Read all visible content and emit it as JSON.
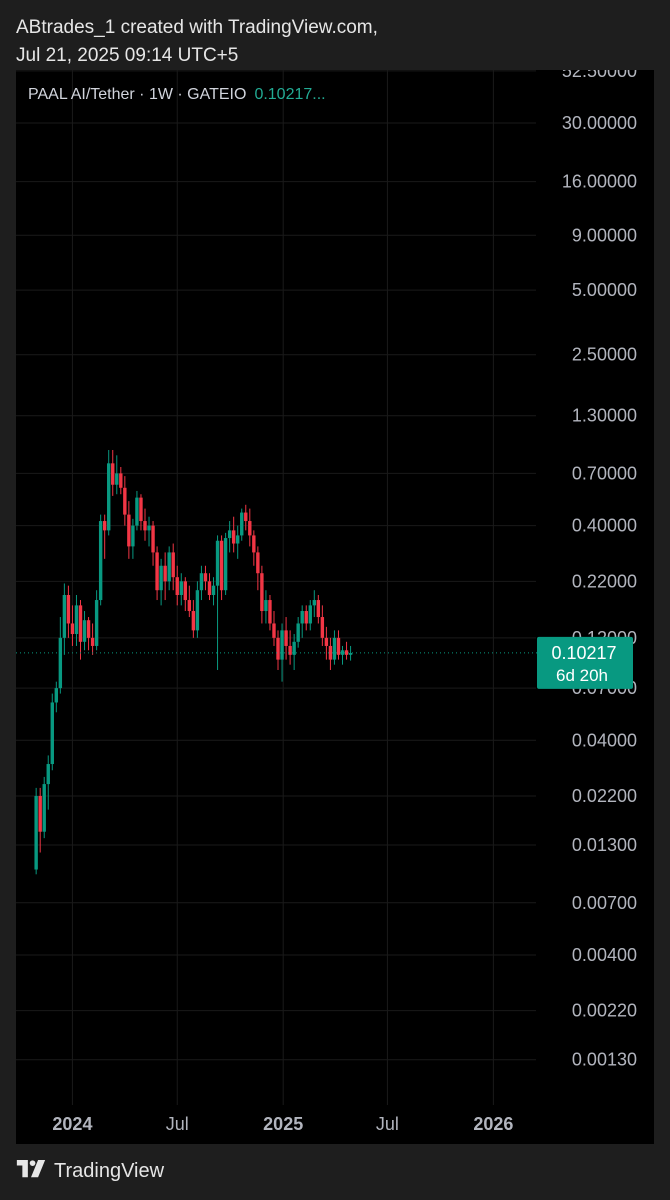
{
  "caption": {
    "line1": "ABtrades_1 created with TradingView.com,",
    "line2": "Jul 21, 2025 09:14 UTC+5"
  },
  "legend": {
    "symbol": "PAAL AI/Tether · 1W · GATEIO",
    "price": "0.10217..."
  },
  "price_tag": {
    "value": "0.10217",
    "countdown": "6d 20h",
    "color": "#089981"
  },
  "footer": {
    "brand": "TradingView"
  },
  "colors": {
    "up": "#089981",
    "down": "#f23645",
    "background": "#000000",
    "grid": "#1a1a1a",
    "axis_text": "#b2b5be"
  },
  "chart_data": {
    "type": "candlestick",
    "interval": "1W",
    "y_scale": "log",
    "ylim": [
      0.0008,
      53.0
    ],
    "xlim": [
      "2023-09-25",
      "2026-03-16"
    ],
    "y_ticks": [
      "52.50000",
      "30.00000",
      "16.00000",
      "9.00000",
      "5.00000",
      "2.50000",
      "1.30000",
      "0.70000",
      "0.40000",
      "0.22000",
      "0.12000",
      "0.07000",
      "0.04000",
      "0.02200",
      "0.01300",
      "0.00700",
      "0.00400",
      "0.00220",
      "0.00130"
    ],
    "x_ticks": [
      {
        "label": "2024",
        "date": "2024-01-01",
        "bold": true
      },
      {
        "label": "Jul",
        "date": "2024-07-01",
        "bold": false
      },
      {
        "label": "2025",
        "date": "2025-01-01",
        "bold": true
      },
      {
        "label": "Jul",
        "date": "2025-07-01",
        "bold": false
      },
      {
        "label": "2026",
        "date": "2026-01-01",
        "bold": true
      }
    ],
    "last_price": 0.10217,
    "candles": [
      {
        "t": "2023-10-30",
        "o": 0.01,
        "h": 0.024,
        "l": 0.0095,
        "c": 0.022
      },
      {
        "t": "2023-11-06",
        "o": 0.022,
        "h": 0.024,
        "l": 0.012,
        "c": 0.015
      },
      {
        "t": "2023-11-13",
        "o": 0.015,
        "h": 0.027,
        "l": 0.014,
        "c": 0.025
      },
      {
        "t": "2023-11-20",
        "o": 0.025,
        "h": 0.034,
        "l": 0.019,
        "c": 0.031
      },
      {
        "t": "2023-11-27",
        "o": 0.031,
        "h": 0.066,
        "l": 0.029,
        "c": 0.06
      },
      {
        "t": "2023-12-04",
        "o": 0.06,
        "h": 0.075,
        "l": 0.054,
        "c": 0.07
      },
      {
        "t": "2023-12-11",
        "o": 0.07,
        "h": 0.15,
        "l": 0.066,
        "c": 0.12
      },
      {
        "t": "2023-12-18",
        "o": 0.12,
        "h": 0.215,
        "l": 0.1,
        "c": 0.19
      },
      {
        "t": "2023-12-25",
        "o": 0.19,
        "h": 0.21,
        "l": 0.12,
        "c": 0.14
      },
      {
        "t": "2024-01-01",
        "o": 0.14,
        "h": 0.17,
        "l": 0.11,
        "c": 0.125
      },
      {
        "t": "2024-01-08",
        "o": 0.125,
        "h": 0.19,
        "l": 0.11,
        "c": 0.17
      },
      {
        "t": "2024-01-15",
        "o": 0.17,
        "h": 0.18,
        "l": 0.095,
        "c": 0.115
      },
      {
        "t": "2024-01-22",
        "o": 0.115,
        "h": 0.16,
        "l": 0.105,
        "c": 0.145
      },
      {
        "t": "2024-01-29",
        "o": 0.145,
        "h": 0.15,
        "l": 0.105,
        "c": 0.12
      },
      {
        "t": "2024-02-05",
        "o": 0.12,
        "h": 0.14,
        "l": 0.1,
        "c": 0.11
      },
      {
        "t": "2024-02-12",
        "o": 0.11,
        "h": 0.2,
        "l": 0.105,
        "c": 0.18
      },
      {
        "t": "2024-02-19",
        "o": 0.18,
        "h": 0.45,
        "l": 0.17,
        "c": 0.42
      },
      {
        "t": "2024-02-26",
        "o": 0.42,
        "h": 0.45,
        "l": 0.28,
        "c": 0.38
      },
      {
        "t": "2024-03-04",
        "o": 0.38,
        "h": 0.9,
        "l": 0.36,
        "c": 0.78
      },
      {
        "t": "2024-03-11",
        "o": 0.78,
        "h": 0.9,
        "l": 0.55,
        "c": 0.62
      },
      {
        "t": "2024-03-18",
        "o": 0.62,
        "h": 0.85,
        "l": 0.56,
        "c": 0.7
      },
      {
        "t": "2024-03-25",
        "o": 0.7,
        "h": 0.75,
        "l": 0.56,
        "c": 0.6
      },
      {
        "t": "2024-04-01",
        "o": 0.6,
        "h": 0.68,
        "l": 0.4,
        "c": 0.45
      },
      {
        "t": "2024-04-08",
        "o": 0.45,
        "h": 0.52,
        "l": 0.28,
        "c": 0.32
      },
      {
        "t": "2024-04-15",
        "o": 0.32,
        "h": 0.43,
        "l": 0.28,
        "c": 0.4
      },
      {
        "t": "2024-04-22",
        "o": 0.4,
        "h": 0.58,
        "l": 0.38,
        "c": 0.54
      },
      {
        "t": "2024-04-29",
        "o": 0.54,
        "h": 0.56,
        "l": 0.38,
        "c": 0.42
      },
      {
        "t": "2024-05-06",
        "o": 0.42,
        "h": 0.48,
        "l": 0.34,
        "c": 0.38
      },
      {
        "t": "2024-05-13",
        "o": 0.38,
        "h": 0.44,
        "l": 0.32,
        "c": 0.4
      },
      {
        "t": "2024-05-20",
        "o": 0.4,
        "h": 0.42,
        "l": 0.26,
        "c": 0.3
      },
      {
        "t": "2024-05-27",
        "o": 0.3,
        "h": 0.32,
        "l": 0.18,
        "c": 0.2
      },
      {
        "t": "2024-06-03",
        "o": 0.2,
        "h": 0.28,
        "l": 0.17,
        "c": 0.26
      },
      {
        "t": "2024-06-10",
        "o": 0.26,
        "h": 0.3,
        "l": 0.18,
        "c": 0.22
      },
      {
        "t": "2024-06-17",
        "o": 0.22,
        "h": 0.32,
        "l": 0.2,
        "c": 0.3
      },
      {
        "t": "2024-06-24",
        "o": 0.3,
        "h": 0.33,
        "l": 0.2,
        "c": 0.23
      },
      {
        "t": "2024-07-01",
        "o": 0.23,
        "h": 0.26,
        "l": 0.17,
        "c": 0.19
      },
      {
        "t": "2024-07-08",
        "o": 0.19,
        "h": 0.24,
        "l": 0.17,
        "c": 0.22
      },
      {
        "t": "2024-07-15",
        "o": 0.22,
        "h": 0.23,
        "l": 0.16,
        "c": 0.18
      },
      {
        "t": "2024-07-22",
        "o": 0.18,
        "h": 0.21,
        "l": 0.15,
        "c": 0.16
      },
      {
        "t": "2024-07-29",
        "o": 0.16,
        "h": 0.18,
        "l": 0.12,
        "c": 0.13
      },
      {
        "t": "2024-08-05",
        "o": 0.13,
        "h": 0.22,
        "l": 0.12,
        "c": 0.2
      },
      {
        "t": "2024-08-12",
        "o": 0.2,
        "h": 0.26,
        "l": 0.18,
        "c": 0.24
      },
      {
        "t": "2024-08-19",
        "o": 0.24,
        "h": 0.26,
        "l": 0.2,
        "c": 0.22
      },
      {
        "t": "2024-08-26",
        "o": 0.22,
        "h": 0.24,
        "l": 0.18,
        "c": 0.19
      },
      {
        "t": "2024-09-02",
        "o": 0.19,
        "h": 0.23,
        "l": 0.17,
        "c": 0.21
      },
      {
        "t": "2024-09-09",
        "o": 0.21,
        "h": 0.36,
        "l": 0.085,
        "c": 0.34
      },
      {
        "t": "2024-09-16",
        "o": 0.34,
        "h": 0.36,
        "l": 0.18,
        "c": 0.2
      },
      {
        "t": "2024-09-23",
        "o": 0.2,
        "h": 0.37,
        "l": 0.19,
        "c": 0.35
      },
      {
        "t": "2024-09-30",
        "o": 0.35,
        "h": 0.42,
        "l": 0.3,
        "c": 0.38
      },
      {
        "t": "2024-10-07",
        "o": 0.38,
        "h": 0.44,
        "l": 0.3,
        "c": 0.33
      },
      {
        "t": "2024-10-14",
        "o": 0.33,
        "h": 0.4,
        "l": 0.28,
        "c": 0.36
      },
      {
        "t": "2024-10-21",
        "o": 0.36,
        "h": 0.48,
        "l": 0.34,
        "c": 0.46
      },
      {
        "t": "2024-10-28",
        "o": 0.46,
        "h": 0.5,
        "l": 0.38,
        "c": 0.42
      },
      {
        "t": "2024-11-04",
        "o": 0.42,
        "h": 0.48,
        "l": 0.32,
        "c": 0.36
      },
      {
        "t": "2024-11-11",
        "o": 0.36,
        "h": 0.38,
        "l": 0.26,
        "c": 0.3
      },
      {
        "t": "2024-11-18",
        "o": 0.3,
        "h": 0.32,
        "l": 0.2,
        "c": 0.24
      },
      {
        "t": "2024-11-25",
        "o": 0.24,
        "h": 0.26,
        "l": 0.14,
        "c": 0.16
      },
      {
        "t": "2024-12-02",
        "o": 0.16,
        "h": 0.2,
        "l": 0.14,
        "c": 0.18
      },
      {
        "t": "2024-12-09",
        "o": 0.18,
        "h": 0.19,
        "l": 0.13,
        "c": 0.14
      },
      {
        "t": "2024-12-16",
        "o": 0.14,
        "h": 0.16,
        "l": 0.11,
        "c": 0.12
      },
      {
        "t": "2024-12-23",
        "o": 0.12,
        "h": 0.13,
        "l": 0.085,
        "c": 0.095
      },
      {
        "t": "2024-12-30",
        "o": 0.095,
        "h": 0.14,
        "l": 0.075,
        "c": 0.13
      },
      {
        "t": "2025-01-06",
        "o": 0.13,
        "h": 0.15,
        "l": 0.095,
        "c": 0.11
      },
      {
        "t": "2025-01-13",
        "o": 0.11,
        "h": 0.13,
        "l": 0.09,
        "c": 0.1
      },
      {
        "t": "2025-01-20",
        "o": 0.1,
        "h": 0.125,
        "l": 0.085,
        "c": 0.115
      },
      {
        "t": "2025-01-27",
        "o": 0.115,
        "h": 0.15,
        "l": 0.108,
        "c": 0.14
      },
      {
        "t": "2025-02-03",
        "o": 0.14,
        "h": 0.17,
        "l": 0.12,
        "c": 0.16
      },
      {
        "t": "2025-02-10",
        "o": 0.16,
        "h": 0.17,
        "l": 0.13,
        "c": 0.14
      },
      {
        "t": "2025-02-17",
        "o": 0.14,
        "h": 0.18,
        "l": 0.13,
        "c": 0.17
      },
      {
        "t": "2025-02-24",
        "o": 0.17,
        "h": 0.2,
        "l": 0.15,
        "c": 0.18
      },
      {
        "t": "2025-03-03",
        "o": 0.18,
        "h": 0.19,
        "l": 0.14,
        "c": 0.15
      },
      {
        "t": "2025-03-10",
        "o": 0.15,
        "h": 0.17,
        "l": 0.11,
        "c": 0.12
      },
      {
        "t": "2025-03-17",
        "o": 0.12,
        "h": 0.135,
        "l": 0.095,
        "c": 0.11
      },
      {
        "t": "2025-03-24",
        "o": 0.11,
        "h": 0.12,
        "l": 0.085,
        "c": 0.095
      },
      {
        "t": "2025-03-31",
        "o": 0.095,
        "h": 0.13,
        "l": 0.09,
        "c": 0.12
      },
      {
        "t": "2025-04-07",
        "o": 0.12,
        "h": 0.13,
        "l": 0.095,
        "c": 0.1
      },
      {
        "t": "2025-04-14",
        "o": 0.1,
        "h": 0.11,
        "l": 0.09,
        "c": 0.105
      },
      {
        "t": "2025-04-21",
        "o": 0.105,
        "h": 0.115,
        "l": 0.095,
        "c": 0.1
      },
      {
        "t": "2025-04-28",
        "o": 0.1,
        "h": 0.11,
        "l": 0.094,
        "c": 0.102
      }
    ]
  }
}
